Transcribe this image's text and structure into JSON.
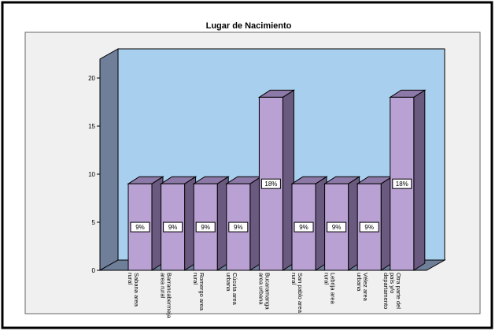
{
  "chart_data": {
    "type": "bar3d",
    "title": "Lugar de Nacimiento",
    "categories": [
      "Sabana area rural",
      "Barrancabermeja area rural",
      "Romergo area rural",
      "Cúcuta area urbana",
      "Bucaramanga area urbana",
      "San pablo area rural",
      "Lebrija area rural",
      "Vélez area urbana",
      "Otra parte del país y/o departamento"
    ],
    "values": [
      9,
      9,
      9,
      9,
      18,
      9,
      9,
      9,
      18
    ],
    "value_labels": [
      "9%",
      "9%",
      "9%",
      "9%",
      "18%",
      "9%",
      "9%",
      "9%",
      "18%"
    ],
    "color": "#b9a1d3",
    "ylim": [
      0,
      20
    ],
    "yticks": [
      0,
      5,
      10,
      15,
      20
    ]
  }
}
